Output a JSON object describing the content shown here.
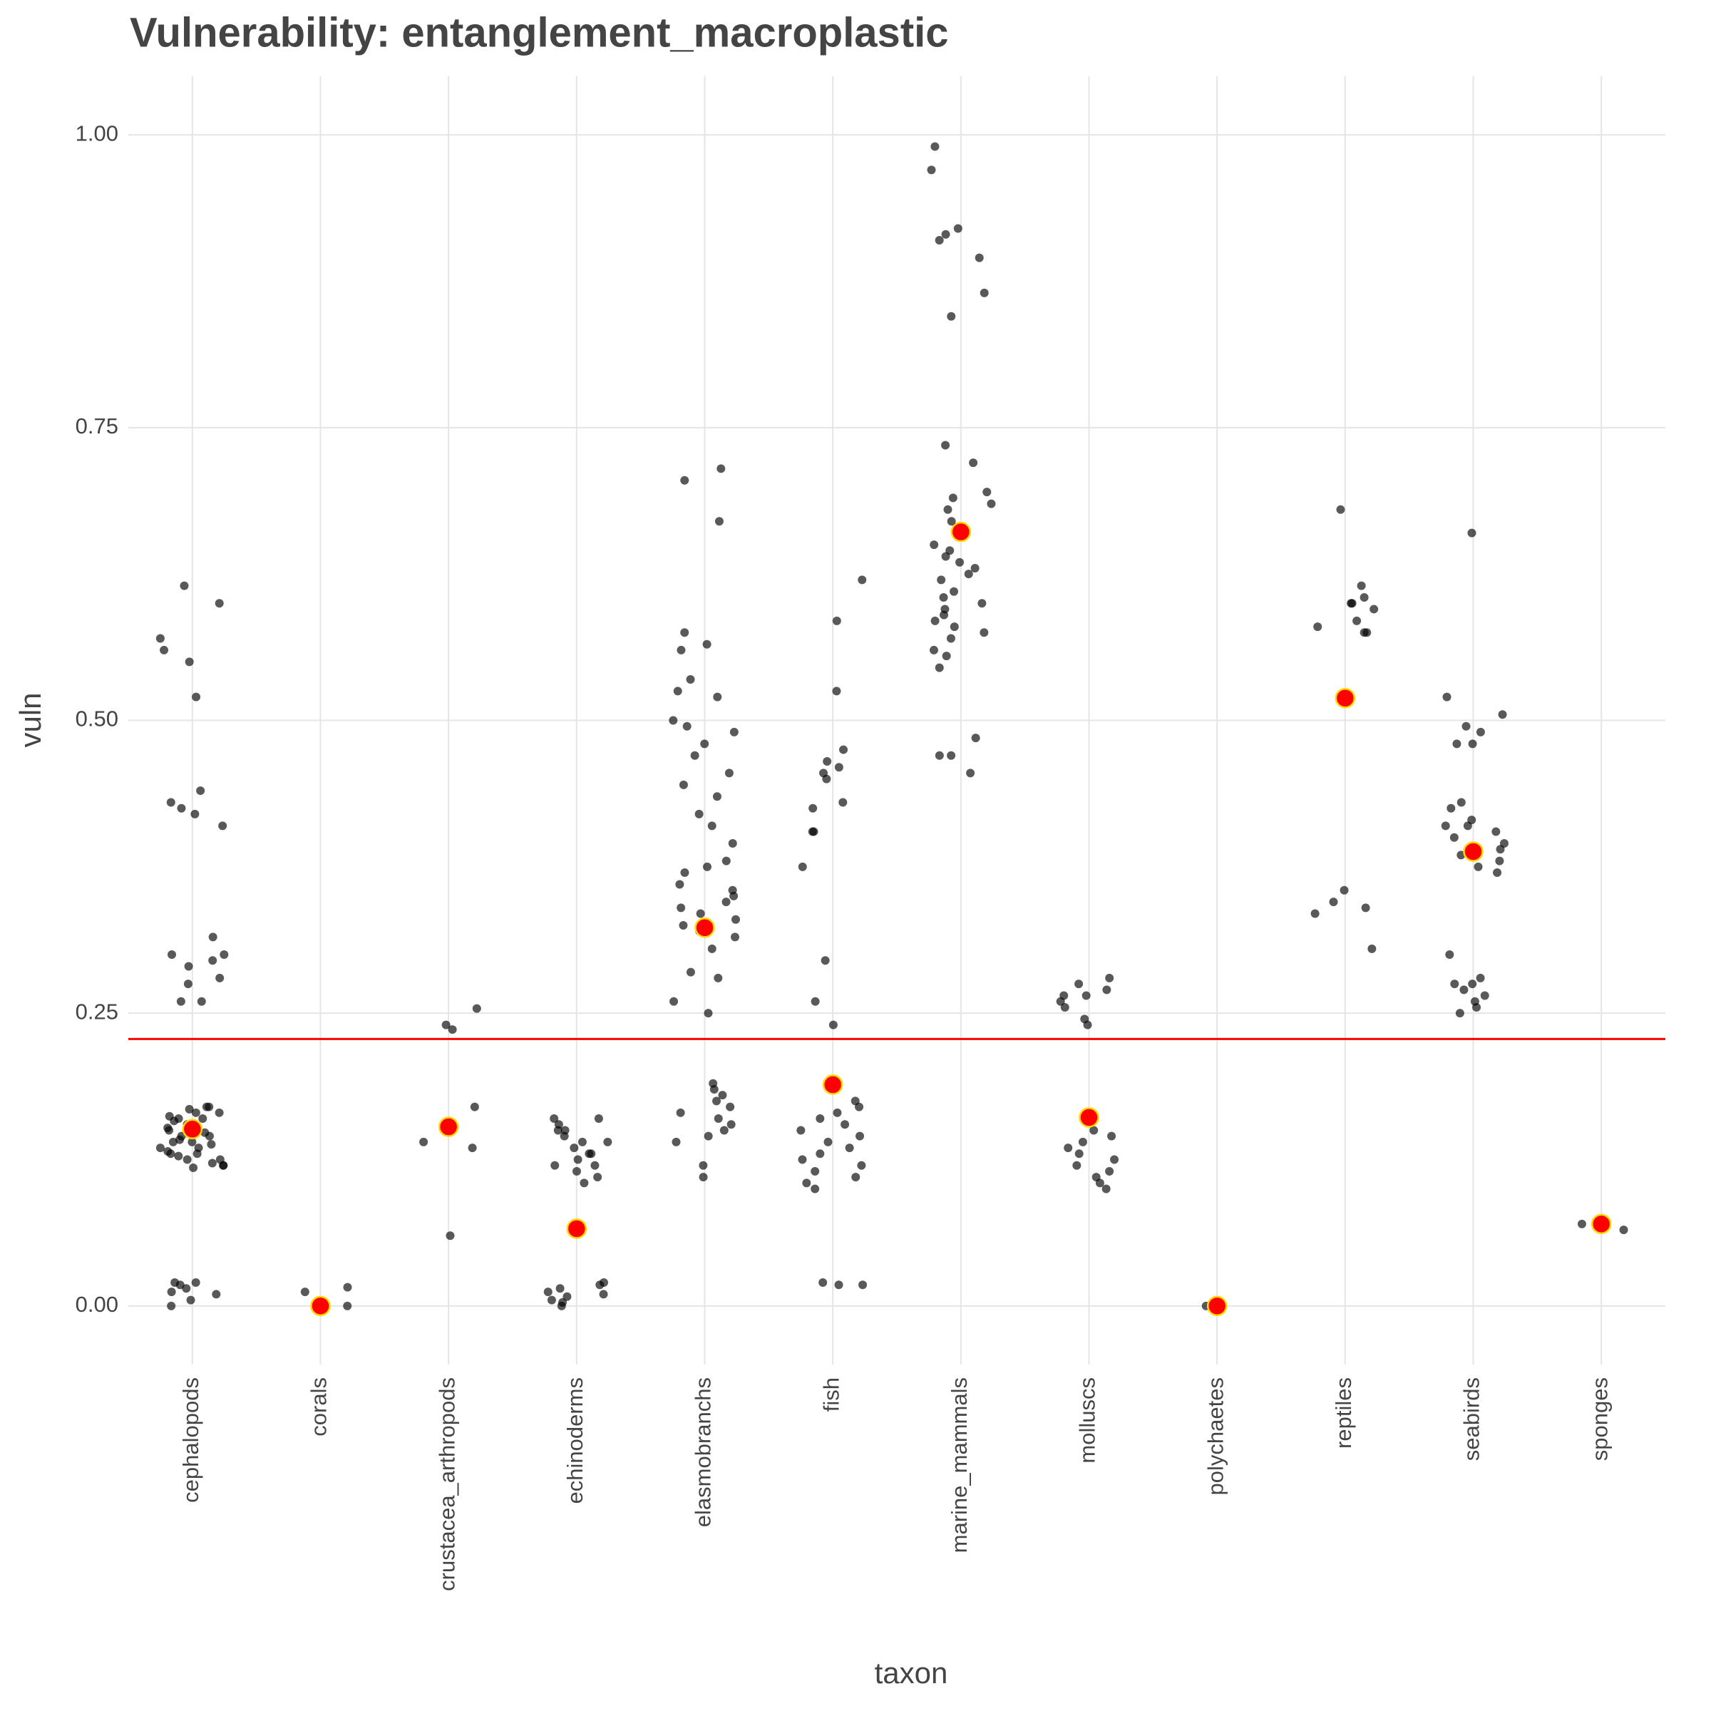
{
  "chart_data": {
    "type": "strip",
    "title": "Vulnerability: entanglement_macroplastic",
    "x_label": "taxon",
    "y_label": "vuln",
    "categories": [
      "cephalopods",
      "corals",
      "crustacea_arthropods",
      "echinoderms",
      "elasmobranchs",
      "fish",
      "marine_mammals",
      "molluscs",
      "polychaetes",
      "reptiles",
      "seabirds",
      "sponges"
    ],
    "points": [
      [
        0.57,
        0.6,
        0.56,
        0.52,
        0.615,
        0.55,
        0.44,
        0.43,
        0.425,
        0.42,
        0.41,
        0.315,
        0.3,
        0.3,
        0.295,
        0.29,
        0.28,
        0.275,
        0.26,
        0.26,
        0.17,
        0.165,
        0.16,
        0.155,
        0.15,
        0.145,
        0.14,
        0.135,
        0.13,
        0.125,
        0.12,
        0.17,
        0.16,
        0.15,
        0.14,
        0.13,
        0.12,
        0.165,
        0.155,
        0.145,
        0.135,
        0.125,
        0.168,
        0.158,
        0.148,
        0.138,
        0.128,
        0.118,
        0.162,
        0.152,
        0.142,
        0.132,
        0.122,
        0.02,
        0.015,
        0.01,
        0.005,
        0.02,
        0.018,
        0.012,
        0.0
      ],
      [
        0.016,
        0.012,
        0.0
      ],
      [
        0.254,
        0.24,
        0.236,
        0.17,
        0.14,
        0.135,
        0.06
      ],
      [
        0.16,
        0.155,
        0.15,
        0.145,
        0.14,
        0.135,
        0.13,
        0.125,
        0.12,
        0.115,
        0.11,
        0.105,
        0.16,
        0.15,
        0.14,
        0.13,
        0.12,
        0.02,
        0.015,
        0.01,
        0.005,
        0.0,
        0.018,
        0.012,
        0.008,
        0.003
      ],
      [
        0.705,
        0.715,
        0.67,
        0.575,
        0.565,
        0.56,
        0.535,
        0.525,
        0.52,
        0.5,
        0.495,
        0.49,
        0.48,
        0.47,
        0.455,
        0.445,
        0.435,
        0.42,
        0.41,
        0.395,
        0.38,
        0.375,
        0.37,
        0.36,
        0.355,
        0.35,
        0.345,
        0.34,
        0.335,
        0.33,
        0.325,
        0.32,
        0.315,
        0.305,
        0.285,
        0.28,
        0.26,
        0.25,
        0.19,
        0.185,
        0.18,
        0.175,
        0.17,
        0.165,
        0.16,
        0.155,
        0.15,
        0.145,
        0.14,
        0.12,
        0.11
      ],
      [
        0.62,
        0.585,
        0.525,
        0.475,
        0.465,
        0.46,
        0.455,
        0.45,
        0.43,
        0.425,
        0.405,
        0.405,
        0.375,
        0.295,
        0.26,
        0.24,
        0.175,
        0.17,
        0.165,
        0.16,
        0.155,
        0.15,
        0.145,
        0.14,
        0.135,
        0.13,
        0.125,
        0.12,
        0.115,
        0.11,
        0.105,
        0.1,
        0.02,
        0.018,
        0.018
      ],
      [
        0.99,
        0.97,
        0.92,
        0.915,
        0.91,
        0.895,
        0.865,
        0.845,
        0.735,
        0.72,
        0.695,
        0.69,
        0.685,
        0.68,
        0.67,
        0.665,
        0.65,
        0.645,
        0.64,
        0.635,
        0.63,
        0.625,
        0.62,
        0.61,
        0.605,
        0.6,
        0.595,
        0.59,
        0.585,
        0.58,
        0.575,
        0.57,
        0.56,
        0.555,
        0.545,
        0.485,
        0.47,
        0.47,
        0.455
      ],
      [
        0.28,
        0.275,
        0.27,
        0.265,
        0.265,
        0.26,
        0.255,
        0.245,
        0.24,
        0.15,
        0.145,
        0.14,
        0.135,
        0.13,
        0.125,
        0.12,
        0.115,
        0.11,
        0.105,
        0.1
      ],
      [
        0.0
      ],
      [
        0.68,
        0.615,
        0.605,
        0.6,
        0.6,
        0.595,
        0.585,
        0.58,
        0.575,
        0.575,
        0.355,
        0.345,
        0.34,
        0.335,
        0.305
      ],
      [
        0.66,
        0.52,
        0.505,
        0.495,
        0.49,
        0.48,
        0.48,
        0.43,
        0.425,
        0.415,
        0.41,
        0.41,
        0.405,
        0.4,
        0.395,
        0.39,
        0.385,
        0.385,
        0.38,
        0.375,
        0.37,
        0.3,
        0.28,
        0.275,
        0.275,
        0.27,
        0.265,
        0.26,
        0.255,
        0.25
      ],
      [
        0.065,
        0.07
      ]
    ],
    "means": [
      0.151,
      0.0,
      0.153,
      0.066,
      0.323,
      0.189,
      0.661,
      0.161,
      0.0,
      0.519,
      0.388,
      0.07
    ],
    "hline": 0.228,
    "point_color": "#000000",
    "mean_color": "#ff0000",
    "mean_stroke": "#ffd700",
    "hline_color": "#ff0000",
    "ylim": [
      -0.05,
      1.05
    ],
    "yticks": [
      {
        "value": 0,
        "label": "0.00"
      },
      {
        "value": 0.25,
        "label": "0.25"
      },
      {
        "value": 0.5,
        "label": "0.50"
      },
      {
        "value": 0.75,
        "label": "0.75"
      },
      {
        "value": 1,
        "label": "1.00"
      }
    ],
    "grid": true
  }
}
